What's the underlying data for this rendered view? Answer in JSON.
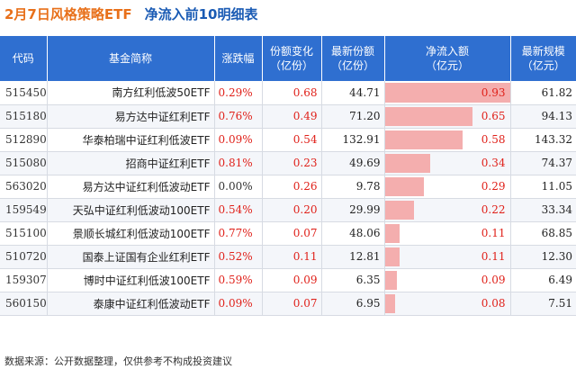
{
  "header": {
    "title_date": "2月7日风格策略ETF",
    "title_main": "净流入前10明细表"
  },
  "table": {
    "columns": [
      "代码",
      "基金简称",
      "涨跌幅",
      "份额变化\n（亿份）",
      "最新份额\n（亿份）",
      "净流入额\n（亿元）",
      "最新规模\n（亿元）"
    ],
    "rows": [
      {
        "code": "515450",
        "name": "南方红利低波50ETF",
        "chg": "0.29%",
        "share_chg": "0.68",
        "shares": "44.71",
        "inflow": "0.93",
        "scale": "61.82"
      },
      {
        "code": "515180",
        "name": "易方达中证红利ETF",
        "chg": "0.76%",
        "share_chg": "0.49",
        "shares": "71.20",
        "inflow": "0.65",
        "scale": "94.13"
      },
      {
        "code": "512890",
        "name": "华泰柏瑞中证红利低波ETF",
        "chg": "0.09%",
        "share_chg": "0.54",
        "shares": "132.91",
        "inflow": "0.58",
        "scale": "143.32"
      },
      {
        "code": "515080",
        "name": "招商中证红利ETF",
        "chg": "0.81%",
        "share_chg": "0.23",
        "shares": "49.69",
        "inflow": "0.34",
        "scale": "74.37"
      },
      {
        "code": "563020",
        "name": "易方达中证红利低波动ETF",
        "chg": "0.00%",
        "share_chg": "0.26",
        "shares": "9.78",
        "inflow": "0.29",
        "scale": "11.05"
      },
      {
        "code": "159549",
        "name": "天弘中证红利低波动100ETF",
        "chg": "0.54%",
        "share_chg": "0.20",
        "shares": "29.99",
        "inflow": "0.22",
        "scale": "33.34"
      },
      {
        "code": "515100",
        "name": "景顺长城红利低波动100ETF",
        "chg": "0.77%",
        "share_chg": "0.07",
        "shares": "48.06",
        "inflow": "0.11",
        "scale": "68.85"
      },
      {
        "code": "510720",
        "name": "国泰上证国有企业红利ETF",
        "chg": "0.52%",
        "share_chg": "0.11",
        "shares": "12.81",
        "inflow": "0.11",
        "scale": "12.30"
      },
      {
        "code": "159307",
        "name": "博时中证红利低波100ETF",
        "chg": "0.59%",
        "share_chg": "0.09",
        "shares": "6.35",
        "inflow": "0.09",
        "scale": "6.49"
      },
      {
        "code": "560150",
        "name": "泰康中证红利低波动ETF",
        "chg": "0.09%",
        "share_chg": "0.07",
        "shares": "6.95",
        "inflow": "0.08",
        "scale": "7.51"
      }
    ]
  },
  "footer": {
    "source": "数据来源：公开数据整理，仅供参考不构成投资建议"
  },
  "colors": {
    "header_bg": "#2f6fd0",
    "title_orange": "#e8701a",
    "title_blue": "#1a5bb4",
    "positive": "#e0211a",
    "bar": "#f4aeae"
  }
}
